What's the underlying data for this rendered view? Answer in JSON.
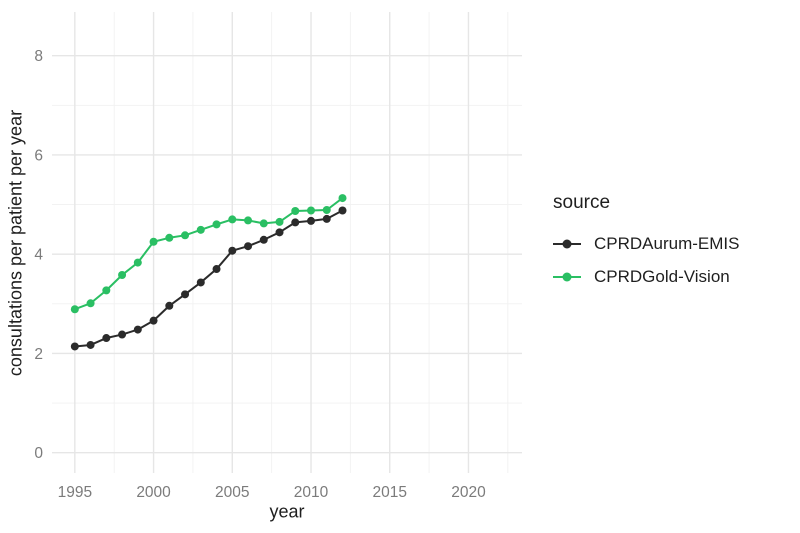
{
  "chart_data": {
    "type": "line",
    "title": "",
    "xlabel": "year",
    "ylabel": "consultations per patient per year",
    "x": [
      1995,
      1996,
      1997,
      1998,
      1999,
      2000,
      2001,
      2002,
      2003,
      2004,
      2005,
      2006,
      2007,
      2008,
      2009,
      2010,
      2011,
      2012
    ],
    "series": [
      {
        "name": "CPRDAurum-EMIS",
        "color": "#2b2b2b",
        "values": [
          2.14,
          2.17,
          2.31,
          2.38,
          2.48,
          2.66,
          2.96,
          3.19,
          3.43,
          3.7,
          4.07,
          4.16,
          4.29,
          4.44,
          4.64,
          4.67,
          4.71,
          4.88
        ]
      },
      {
        "name": "CPRDGold-Vision",
        "color": "#2abf63",
        "values": [
          2.89,
          3.01,
          3.27,
          3.58,
          3.83,
          4.25,
          4.33,
          4.38,
          4.49,
          4.6,
          4.7,
          4.68,
          4.62,
          4.65,
          4.87,
          4.88,
          4.89,
          5.13
        ]
      }
    ],
    "x_ticks": [
      1995,
      2000,
      2005,
      2010,
      2015,
      2020
    ],
    "y_ticks": [
      0,
      2,
      4,
      6,
      8
    ],
    "x_minor_ticks": [
      1997.5,
      2002.5,
      2007.5,
      2012.5,
      2017.5,
      2022.5
    ],
    "y_minor_ticks": [
      1,
      3,
      5,
      7
    ],
    "xlim": [
      1993.55,
      2023.4
    ],
    "ylim": [
      -0.41,
      8.88
    ],
    "grid": true,
    "legend": {
      "title": "source",
      "position": "right"
    }
  },
  "colors": {
    "background": "#ffffff",
    "grid_major": "#e6e6e6",
    "grid_minor": "#f1f1f1",
    "tick_label": "#7b7b7b",
    "axis_title": "#1f1f1f"
  }
}
